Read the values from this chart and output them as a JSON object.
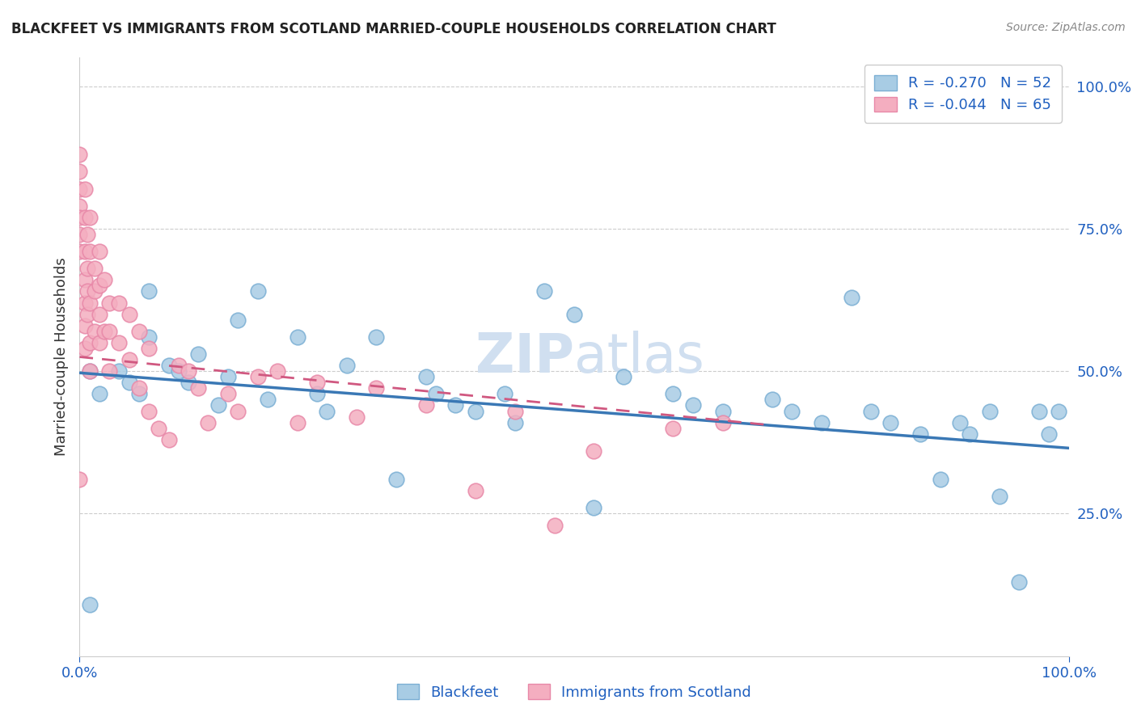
{
  "title": "BLACKFEET VS IMMIGRANTS FROM SCOTLAND MARRIED-COUPLE HOUSEHOLDS CORRELATION CHART",
  "source": "Source: ZipAtlas.com",
  "ylabel": "Married-couple Households",
  "xlabel_blue": "Blackfeet",
  "xlabel_pink": "Immigrants from Scotland",
  "xlim": [
    0.0,
    1.0
  ],
  "ylim": [
    0.0,
    1.0
  ],
  "xtick_labels": [
    "0.0%",
    "100.0%"
  ],
  "ytick_labels": [
    "25.0%",
    "50.0%",
    "75.0%",
    "100.0%"
  ],
  "ytick_positions": [
    0.25,
    0.5,
    0.75,
    1.0
  ],
  "blue_R": -0.27,
  "blue_N": 52,
  "pink_R": -0.044,
  "pink_N": 65,
  "blue_color": "#a8cce4",
  "pink_color": "#f4aec0",
  "blue_edge_color": "#7bafd4",
  "pink_edge_color": "#e888a8",
  "blue_line_color": "#3a78b5",
  "pink_line_color": "#d05880",
  "legend_text_color": "#2060c0",
  "title_color": "#222222",
  "source_color": "#888888",
  "watermark_color": "#d0dff0",
  "blue_line_x0": 0.0,
  "blue_line_y0": 0.497,
  "blue_line_x1": 1.0,
  "blue_line_y1": 0.365,
  "pink_line_x0": 0.0,
  "pink_line_y0": 0.525,
  "pink_line_x1": 0.7,
  "pink_line_y1": 0.405,
  "blue_scatter_x": [
    0.01,
    0.01,
    0.02,
    0.04,
    0.05,
    0.06,
    0.07,
    0.07,
    0.09,
    0.1,
    0.11,
    0.12,
    0.14,
    0.15,
    0.16,
    0.18,
    0.19,
    0.22,
    0.24,
    0.25,
    0.27,
    0.3,
    0.32,
    0.35,
    0.36,
    0.38,
    0.4,
    0.43,
    0.44,
    0.47,
    0.5,
    0.52,
    0.55,
    0.6,
    0.62,
    0.65,
    0.7,
    0.72,
    0.75,
    0.78,
    0.8,
    0.82,
    0.85,
    0.87,
    0.89,
    0.9,
    0.92,
    0.93,
    0.95,
    0.97,
    0.98,
    0.99
  ],
  "blue_scatter_y": [
    0.5,
    0.09,
    0.46,
    0.5,
    0.48,
    0.46,
    0.56,
    0.64,
    0.51,
    0.5,
    0.48,
    0.53,
    0.44,
    0.49,
    0.59,
    0.64,
    0.45,
    0.56,
    0.46,
    0.43,
    0.51,
    0.56,
    0.31,
    0.49,
    0.46,
    0.44,
    0.43,
    0.46,
    0.41,
    0.64,
    0.6,
    0.26,
    0.49,
    0.46,
    0.44,
    0.43,
    0.45,
    0.43,
    0.41,
    0.63,
    0.43,
    0.41,
    0.39,
    0.31,
    0.41,
    0.39,
    0.43,
    0.28,
    0.13,
    0.43,
    0.39,
    0.43
  ],
  "pink_scatter_x": [
    0.0,
    0.0,
    0.0,
    0.0,
    0.0,
    0.0,
    0.0,
    0.0,
    0.005,
    0.005,
    0.005,
    0.005,
    0.005,
    0.005,
    0.005,
    0.008,
    0.008,
    0.008,
    0.008,
    0.01,
    0.01,
    0.01,
    0.01,
    0.01,
    0.015,
    0.015,
    0.015,
    0.02,
    0.02,
    0.02,
    0.02,
    0.025,
    0.025,
    0.03,
    0.03,
    0.03,
    0.04,
    0.04,
    0.05,
    0.05,
    0.06,
    0.06,
    0.07,
    0.07,
    0.08,
    0.09,
    0.1,
    0.11,
    0.12,
    0.13,
    0.15,
    0.16,
    0.18,
    0.2,
    0.22,
    0.24,
    0.28,
    0.3,
    0.35,
    0.4,
    0.44,
    0.48,
    0.52,
    0.6,
    0.65
  ],
  "pink_scatter_y": [
    0.88,
    0.85,
    0.82,
    0.79,
    0.77,
    0.74,
    0.71,
    0.31,
    0.82,
    0.77,
    0.71,
    0.66,
    0.62,
    0.58,
    0.54,
    0.74,
    0.68,
    0.64,
    0.6,
    0.77,
    0.71,
    0.62,
    0.55,
    0.5,
    0.68,
    0.64,
    0.57,
    0.71,
    0.65,
    0.6,
    0.55,
    0.66,
    0.57,
    0.62,
    0.57,
    0.5,
    0.62,
    0.55,
    0.6,
    0.52,
    0.57,
    0.47,
    0.54,
    0.43,
    0.4,
    0.38,
    0.51,
    0.5,
    0.47,
    0.41,
    0.46,
    0.43,
    0.49,
    0.5,
    0.41,
    0.48,
    0.42,
    0.47,
    0.44,
    0.29,
    0.43,
    0.23,
    0.36,
    0.4,
    0.41
  ]
}
